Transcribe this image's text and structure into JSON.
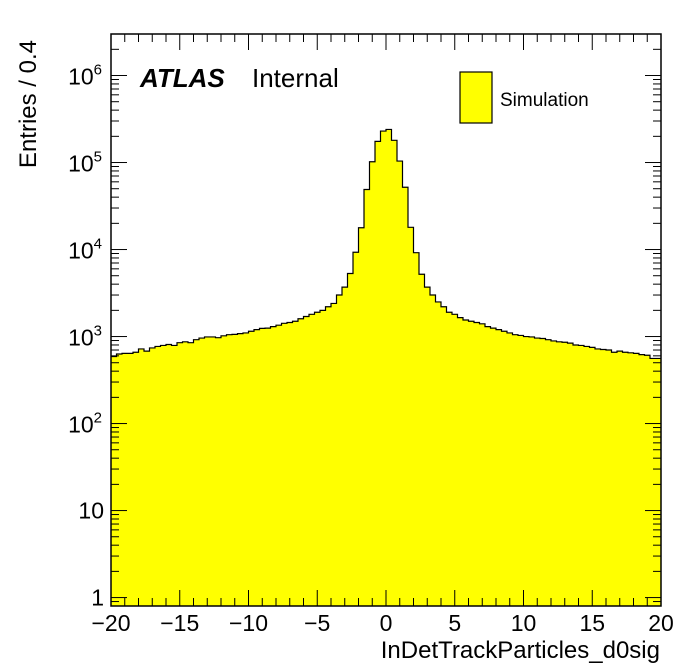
{
  "chart_data": {
    "type": "bar",
    "title": "",
    "xlabel": "InDetTrackParticles_d0sig",
    "ylabel": "Entries / 0.4",
    "xlim": [
      -20,
      20
    ],
    "ylim": [
      0.8,
      3000000
    ],
    "yscale": "log",
    "bin_width": 0.4,
    "fill_color": "#ffff00",
    "line_color": "#000000",
    "grid": false,
    "legend_position": "top-right",
    "legend": [
      {
        "name": "Simulation",
        "color": "#ffff00"
      }
    ],
    "annotation": {
      "bold": "ATLAS",
      "normal": "Internal"
    },
    "x_ticks": [
      {
        "value": -20,
        "label": "−20"
      },
      {
        "value": -15,
        "label": "−15"
      },
      {
        "value": -10,
        "label": "−10"
      },
      {
        "value": -5,
        "label": "−5"
      },
      {
        "value": 0,
        "label": "0"
      },
      {
        "value": 5,
        "label": "5"
      },
      {
        "value": 10,
        "label": "10"
      },
      {
        "value": 15,
        "label": "15"
      },
      {
        "value": 20,
        "label": "20"
      }
    ],
    "y_ticks": [
      {
        "value": 1,
        "base": "1",
        "exp": ""
      },
      {
        "value": 10,
        "base": "10",
        "exp": ""
      },
      {
        "value": 100,
        "base": "10",
        "exp": "2"
      },
      {
        "value": 1000,
        "base": "10",
        "exp": "3"
      },
      {
        "value": 10000,
        "base": "10",
        "exp": "4"
      },
      {
        "value": 100000,
        "base": "10",
        "exp": "5"
      },
      {
        "value": 1000000,
        "base": "10",
        "exp": "6"
      }
    ],
    "x_centers": [
      -19.8,
      -19.4,
      -19.0,
      -18.6,
      -18.2,
      -17.8,
      -17.4,
      -17.0,
      -16.6,
      -16.2,
      -15.8,
      -15.4,
      -15.0,
      -14.6,
      -14.2,
      -13.8,
      -13.4,
      -13.0,
      -12.6,
      -12.2,
      -11.8,
      -11.4,
      -11.0,
      -10.6,
      -10.2,
      -9.8,
      -9.4,
      -9.0,
      -8.6,
      -8.2,
      -7.8,
      -7.4,
      -7.0,
      -6.6,
      -6.2,
      -5.8,
      -5.4,
      -5.0,
      -4.6,
      -4.2,
      -3.8,
      -3.4,
      -3.0,
      -2.6,
      -2.2,
      -1.8,
      -1.4,
      -1.0,
      -0.6,
      -0.2,
      0.2,
      0.6,
      1.0,
      1.4,
      1.8,
      2.2,
      2.6,
      3.0,
      3.4,
      3.8,
      4.2,
      4.6,
      5.0,
      5.4,
      5.8,
      6.2,
      6.6,
      7.0,
      7.4,
      7.8,
      8.2,
      8.6,
      9.0,
      9.4,
      9.8,
      10.2,
      10.6,
      11.0,
      11.4,
      11.8,
      12.2,
      12.6,
      13.0,
      13.4,
      13.8,
      14.2,
      14.6,
      15.0,
      15.4,
      15.8,
      16.2,
      16.6,
      17.0,
      17.4,
      17.8,
      18.2,
      18.6,
      19.0,
      19.4,
      19.8
    ],
    "values": [
      590,
      630,
      640,
      640,
      660,
      720,
      680,
      740,
      770,
      790,
      810,
      790,
      850,
      870,
      850,
      920,
      960,
      990,
      990,
      970,
      1020,
      1050,
      1060,
      1080,
      1100,
      1150,
      1200,
      1240,
      1250,
      1300,
      1350,
      1420,
      1450,
      1500,
      1600,
      1700,
      1800,
      1900,
      2000,
      2200,
      2400,
      3000,
      3700,
      5300,
      9300,
      17800,
      49000,
      102000,
      175000,
      230000,
      240000,
      180000,
      104000,
      52000,
      18000,
      9200,
      5200,
      3700,
      3000,
      2500,
      2200,
      1900,
      1800,
      1650,
      1550,
      1500,
      1450,
      1400,
      1300,
      1250,
      1200,
      1150,
      1100,
      1050,
      1030,
      1000,
      990,
      960,
      950,
      920,
      890,
      870,
      860,
      840,
      800,
      790,
      770,
      750,
      720,
      710,
      700,
      660,
      680,
      660,
      650,
      640,
      620,
      610,
      560,
      560
    ]
  }
}
